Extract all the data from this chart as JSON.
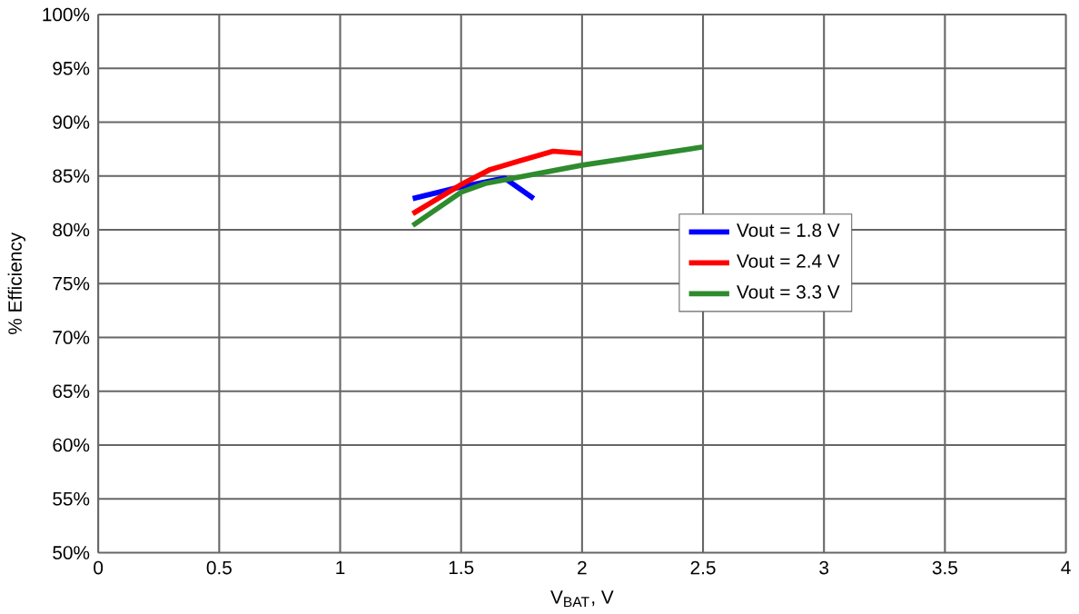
{
  "chart_data": {
    "type": "line",
    "xlabel": "V$_{BAT}$, V",
    "ylabel": "% Efficiency",
    "xlim": [
      0,
      4
    ],
    "xticks": [
      0,
      {
        "value": 0.5,
        "label": "0.5"
      },
      1,
      {
        "value": 1.5,
        "label": "1.5"
      },
      2,
      {
        "value": 2.5,
        "label": "2.5"
      },
      3,
      {
        "value": 3.5,
        "label": "3.5"
      },
      4
    ],
    "ylim": [
      50,
      100
    ],
    "yticks": [
      {
        "value": 50,
        "label": "50%"
      },
      {
        "value": 55,
        "label": "55%"
      },
      {
        "value": 60,
        "label": "60%"
      },
      {
        "value": 65,
        "label": "65%"
      },
      {
        "value": 70,
        "label": "70%"
      },
      {
        "value": 75,
        "label": "75%"
      },
      {
        "value": 80,
        "label": "80%"
      },
      {
        "value": 85,
        "label": "85%"
      },
      {
        "value": 90,
        "label": "90%"
      },
      {
        "value": 95,
        "label": "95%"
      },
      {
        "value": 100,
        "label": "100%"
      }
    ],
    "grid": true,
    "legend": "right",
    "series": [
      {
        "name": "Vout = 1.8 V",
        "color": "#0000ff",
        "x": [
          1.3,
          1.5,
          1.68,
          1.8
        ],
        "values": [
          82.9,
          84.0,
          84.8,
          82.9
        ]
      },
      {
        "name": "Vout = 2.4 V",
        "color": "#ff0000",
        "x": [
          1.3,
          1.5,
          1.62,
          1.74,
          1.88,
          2.0
        ],
        "values": [
          81.5,
          84.2,
          85.6,
          86.4,
          87.3,
          87.1
        ]
      },
      {
        "name": "Vout = 3.3 V",
        "color": "#2e8b2e",
        "x": [
          1.3,
          1.5,
          1.6,
          2.0,
          2.5
        ],
        "values": [
          80.4,
          83.5,
          84.3,
          86.0,
          87.7
        ]
      }
    ]
  }
}
